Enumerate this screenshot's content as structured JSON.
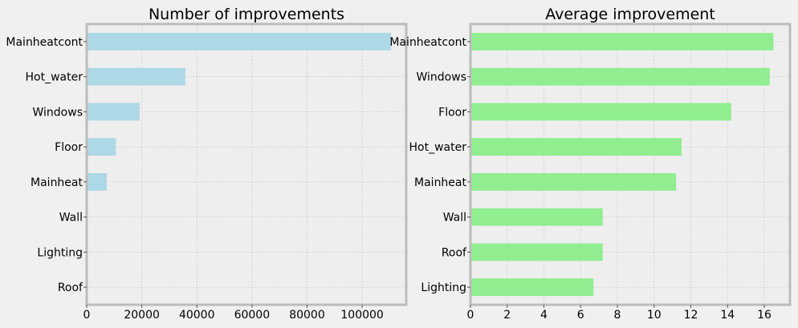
{
  "chart_data": [
    {
      "type": "bar",
      "orientation": "horizontal",
      "title": "Number of improvements",
      "xlabel": "",
      "ylabel": "",
      "categories": [
        "Mainheatcont",
        "Hot_water",
        "Windows",
        "Floor",
        "Mainheat",
        "Wall",
        "Lighting",
        "Roof"
      ],
      "values": [
        110500,
        35800,
        19200,
        10600,
        7300,
        0,
        0,
        0
      ],
      "xlim": [
        0,
        116000
      ],
      "xticks": [
        0,
        20000,
        40000,
        60000,
        80000,
        100000
      ],
      "bar_color": "#add8e6",
      "grid": true
    },
    {
      "type": "bar",
      "orientation": "horizontal",
      "title": "Average improvement",
      "xlabel": "",
      "ylabel": "",
      "categories": [
        "Mainheatcont",
        "Windows",
        "Floor",
        "Hot_water",
        "Mainheat",
        "Wall",
        "Roof",
        "Lighting"
      ],
      "values": [
        16.5,
        16.3,
        14.2,
        11.5,
        11.2,
        7.2,
        7.2,
        6.7
      ],
      "xlim": [
        0,
        17.4
      ],
      "xticks": [
        0,
        2,
        4,
        6,
        8,
        10,
        12,
        14,
        16
      ],
      "bar_color": "#90ee90",
      "grid": true
    }
  ],
  "style": {
    "figure_background": "#f0f0f0",
    "axes_background": "#eeeeee",
    "spine_color": "#bcbcbc",
    "grid_color": "#cbcbcb"
  }
}
